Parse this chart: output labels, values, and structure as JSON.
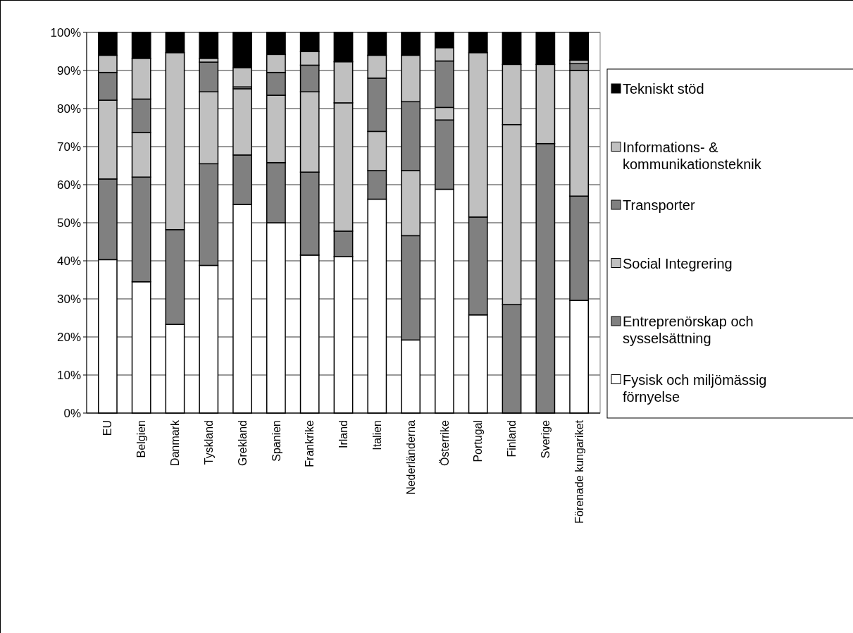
{
  "chart_data": {
    "type": "bar",
    "stacked": true,
    "categories": [
      "EU",
      "Belgien",
      "Danmark",
      "Tyskland",
      "Grekland",
      "Spanien",
      "Frankrike",
      "Irland",
      "Italien",
      "Nederländerna",
      "Österrike",
      "Portugal",
      "Finland",
      "Sverige",
      "Förenade kungariket"
    ],
    "series": [
      {
        "name": "Fysisk och miljömässig förnyelse",
        "color": "#ffffff",
        "values": [
          40.3,
          34.5,
          23.3,
          38.8,
          54.8,
          50,
          41.5,
          41.1,
          56.2,
          19.2,
          58.8,
          25.8,
          0,
          0,
          29.6
        ]
      },
      {
        "name": "Entreprenörskap och sysselsättning",
        "color": "#808080",
        "values": [
          21.2,
          27.5,
          24.9,
          26.7,
          13.0,
          15.8,
          21.8,
          6.7,
          7.5,
          27.4,
          18.2,
          25.7,
          28.5,
          70.8,
          27.4
        ]
      },
      {
        "name": "Social Integrering",
        "color": "#c0c0c0",
        "values": [
          20.7,
          11.7,
          46.5,
          18.9,
          17.4,
          17.7,
          21.1,
          33.7,
          10.3,
          17.1,
          3.3,
          43.2,
          47.3,
          20.8,
          33.0
        ]
      },
      {
        "name": "Transporter",
        "color": "#808080",
        "values": [
          7.3,
          8.8,
          0,
          7.8,
          0.5,
          6.0,
          7.0,
          0,
          14.0,
          18.1,
          12.2,
          0,
          0,
          0,
          1.8
        ]
      },
      {
        "name": "Informations- & kommunikationsteknik",
        "color": "#c0c0c0",
        "values": [
          4.5,
          10.7,
          0,
          1.0,
          5.0,
          4.7,
          3.6,
          10.8,
          6.0,
          12.2,
          3.5,
          0,
          15.8,
          0,
          0.9
        ]
      },
      {
        "name": "Tekniskt stöd",
        "color": "#000000",
        "values": [
          6.0,
          6.8,
          5.3,
          6.8,
          9.3,
          5.8,
          5.0,
          7.7,
          6.0,
          6.0,
          4.0,
          5.3,
          8.4,
          8.4,
          7.3
        ]
      }
    ],
    "ylim": [
      0,
      100
    ],
    "yticks": [
      {
        "value": 0,
        "label": "0%"
      },
      {
        "value": 10,
        "label": "10%"
      },
      {
        "value": 20,
        "label": "20%"
      },
      {
        "value": 30,
        "label": "30%"
      },
      {
        "value": 40,
        "label": "40%"
      },
      {
        "value": 50,
        "label": "50%"
      },
      {
        "value": 60,
        "label": "60%"
      },
      {
        "value": 70,
        "label": "70%"
      },
      {
        "value": 80,
        "label": "80%"
      },
      {
        "value": 90,
        "label": "90%"
      },
      {
        "value": 100,
        "label": "100%"
      }
    ],
    "grid": "y",
    "legend": "right"
  }
}
